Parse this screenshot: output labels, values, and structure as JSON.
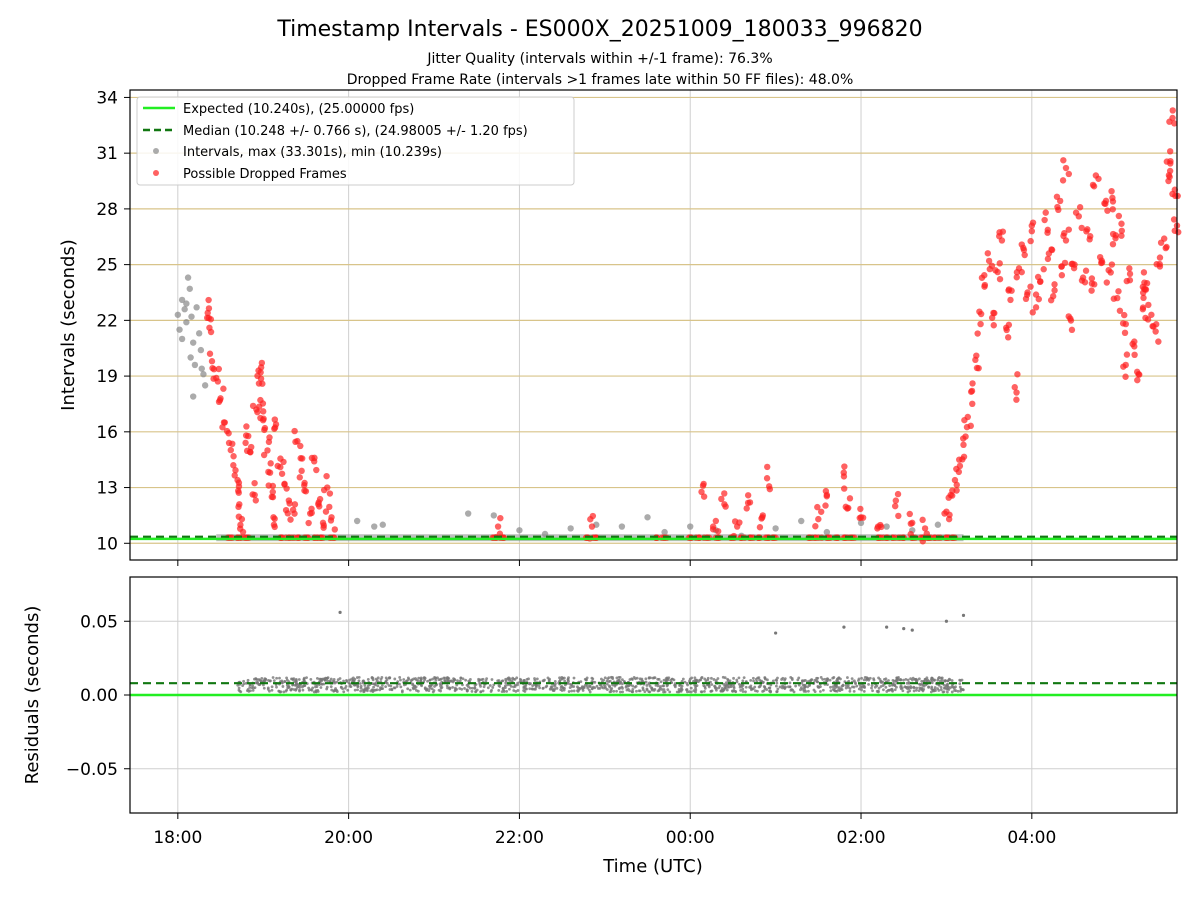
{
  "chart_data": {
    "type": "scatter",
    "title": "Timestamp Intervals - ES000X_20251009_180033_996820",
    "subtitle_lines": [
      "Jitter Quality (intervals within +/-1 frame): 76.3%",
      "Dropped Frame Rate (intervals >1 frames late within 50 FF files): 48.0%"
    ],
    "xlabel": "Time (UTC)",
    "x_unit": "hours since 18:00 UTC",
    "xlim": [
      -0.56,
      11.7
    ],
    "x_ticks": [
      {
        "value": 0,
        "label": "18:00"
      },
      {
        "value": 2,
        "label": "20:00"
      },
      {
        "value": 4,
        "label": "22:00"
      },
      {
        "value": 6,
        "label": "00:00"
      },
      {
        "value": 8,
        "label": "02:00"
      },
      {
        "value": 10,
        "label": "04:00"
      }
    ],
    "top_panel": {
      "ylabel": "Intervals (seconds)",
      "ylim": [
        9.1,
        34.4
      ],
      "y_ticks": [
        10,
        13,
        16,
        19,
        22,
        25,
        28,
        31,
        34
      ],
      "gridlines": [
        10,
        13,
        16,
        19,
        22,
        25,
        28,
        31,
        34
      ],
      "expected_value": 10.24,
      "median_value": 10.248,
      "legend": [
        {
          "label": "Expected (10.240s), (25.00000 fps)",
          "kind": "line",
          "color": "#22ee22"
        },
        {
          "label": "Median (10.248 +/- 0.766 s), (24.98005 +/- 1.20 fps)",
          "kind": "dashed",
          "color": "#117711"
        },
        {
          "label": "Intervals, max (33.301s), min (10.239s)",
          "kind": "dot",
          "color": "#888888"
        },
        {
          "label": "Possible Dropped Frames",
          "kind": "dot",
          "color": "#ff2020"
        }
      ],
      "gray_points": [
        [
          0.0,
          22.3
        ],
        [
          0.02,
          21.5
        ],
        [
          0.05,
          23.1
        ],
        [
          0.08,
          22.6
        ],
        [
          0.1,
          21.9
        ],
        [
          0.12,
          24.3
        ],
        [
          0.14,
          23.7
        ],
        [
          0.16,
          22.2
        ],
        [
          0.18,
          20.8
        ],
        [
          0.2,
          19.6
        ],
        [
          0.22,
          22.7
        ],
        [
          0.25,
          21.3
        ],
        [
          0.27,
          20.4
        ],
        [
          0.3,
          19.1
        ],
        [
          0.32,
          18.5
        ],
        [
          0.05,
          21.0
        ],
        [
          0.1,
          22.9
        ],
        [
          0.15,
          20.0
        ],
        [
          0.18,
          17.9
        ],
        [
          0.28,
          19.4
        ],
        [
          2.1,
          11.2
        ],
        [
          2.3,
          10.9
        ],
        [
          2.4,
          11.0
        ],
        [
          3.4,
          11.6
        ],
        [
          3.7,
          11.5
        ],
        [
          4.0,
          10.7
        ],
        [
          4.3,
          10.5
        ],
        [
          4.6,
          10.8
        ],
        [
          4.9,
          11.0
        ],
        [
          5.2,
          10.9
        ],
        [
          5.5,
          11.4
        ],
        [
          5.7,
          10.6
        ],
        [
          6.0,
          10.9
        ],
        [
          6.3,
          10.7
        ],
        [
          6.6,
          10.4
        ],
        [
          7.0,
          10.8
        ],
        [
          7.3,
          11.2
        ],
        [
          7.6,
          10.6
        ],
        [
          8.0,
          11.1
        ],
        [
          8.3,
          10.9
        ],
        [
          8.6,
          10.7
        ],
        [
          8.9,
          11.0
        ]
      ],
      "red_points": [
        [
          0.35,
          22.4
        ],
        [
          0.37,
          21.6
        ],
        [
          0.4,
          19.8
        ],
        [
          0.45,
          18.9
        ],
        [
          0.5,
          17.8
        ],
        [
          0.55,
          16.5
        ],
        [
          0.6,
          15.4
        ],
        [
          0.65,
          14.2
        ],
        [
          0.7,
          13.4
        ],
        [
          0.72,
          12.1
        ],
        [
          0.75,
          11.3
        ],
        [
          0.8,
          15.8
        ],
        [
          0.85,
          14.9
        ],
        [
          0.9,
          12.6
        ],
        [
          0.92,
          17.2
        ],
        [
          0.95,
          18.6
        ],
        [
          0.97,
          19.2
        ],
        [
          1.0,
          17.1
        ],
        [
          1.02,
          16.2
        ],
        [
          1.05,
          15.0
        ],
        [
          1.08,
          13.8
        ],
        [
          1.1,
          12.5
        ],
        [
          1.12,
          11.4
        ],
        [
          1.15,
          16.4
        ],
        [
          1.2,
          14.1
        ],
        [
          1.25,
          13.2
        ],
        [
          1.3,
          12.3
        ],
        [
          1.35,
          11.8
        ],
        [
          1.4,
          15.5
        ],
        [
          1.45,
          13.9
        ],
        [
          1.5,
          12.8
        ],
        [
          1.55,
          11.6
        ],
        [
          1.6,
          14.6
        ],
        [
          1.65,
          12.2
        ],
        [
          1.7,
          11.1
        ],
        [
          1.75,
          13.0
        ],
        [
          1.8,
          11.4
        ],
        [
          0.6,
          10.3
        ],
        [
          0.7,
          10.3
        ],
        [
          0.8,
          10.3
        ],
        [
          1.2,
          10.3
        ],
        [
          1.3,
          10.3
        ],
        [
          1.4,
          10.3
        ],
        [
          1.5,
          10.3
        ],
        [
          1.6,
          10.3
        ],
        [
          1.7,
          10.3
        ],
        [
          1.8,
          10.3
        ],
        [
          3.7,
          10.3
        ],
        [
          3.8,
          10.3
        ],
        [
          3.75,
          10.9
        ],
        [
          4.8,
          10.3
        ],
        [
          4.9,
          10.3
        ],
        [
          4.85,
          10.9
        ],
        [
          5.6,
          10.3
        ],
        [
          5.7,
          10.3
        ],
        [
          6.0,
          10.3
        ],
        [
          6.1,
          10.3
        ],
        [
          6.2,
          10.3
        ],
        [
          6.3,
          10.3
        ],
        [
          6.5,
          10.3
        ],
        [
          6.6,
          10.3
        ],
        [
          6.7,
          10.3
        ],
        [
          6.8,
          10.3
        ],
        [
          6.9,
          10.3
        ],
        [
          7.0,
          10.3
        ],
        [
          7.4,
          10.3
        ],
        [
          7.5,
          10.3
        ],
        [
          7.6,
          10.3
        ],
        [
          7.7,
          10.3
        ],
        [
          7.8,
          10.3
        ],
        [
          7.9,
          10.3
        ],
        [
          8.2,
          10.3
        ],
        [
          8.3,
          10.3
        ],
        [
          8.4,
          10.3
        ],
        [
          8.5,
          10.3
        ],
        [
          8.6,
          10.3
        ],
        [
          8.7,
          10.3
        ],
        [
          8.8,
          10.3
        ],
        [
          8.9,
          10.3
        ],
        [
          9.0,
          10.3
        ],
        [
          9.1,
          10.3
        ],
        [
          6.15,
          13.1
        ],
        [
          6.3,
          11.2
        ],
        [
          6.4,
          12.1
        ],
        [
          6.55,
          10.9
        ],
        [
          6.7,
          12.2
        ],
        [
          6.85,
          11.5
        ],
        [
          6.9,
          13.5
        ],
        [
          7.5,
          11.3
        ],
        [
          7.6,
          12.6
        ],
        [
          7.8,
          13.6
        ],
        [
          7.85,
          11.9
        ],
        [
          8.0,
          11.4
        ],
        [
          8.2,
          10.9
        ],
        [
          8.4,
          12.0
        ],
        [
          8.6,
          11.1
        ],
        [
          8.75,
          10.8
        ],
        [
          9.0,
          11.7
        ],
        [
          9.05,
          12.6
        ],
        [
          9.1,
          13.4
        ],
        [
          9.15,
          14.5
        ],
        [
          9.2,
          15.3
        ],
        [
          9.25,
          16.8
        ],
        [
          9.3,
          18.2
        ],
        [
          9.35,
          20.1
        ],
        [
          9.4,
          21.8
        ],
        [
          9.45,
          23.9
        ],
        [
          9.5,
          25.2
        ],
        [
          9.55,
          22.4
        ],
        [
          9.6,
          24.6
        ],
        [
          9.65,
          26.3
        ],
        [
          9.7,
          21.6
        ],
        [
          9.75,
          23.1
        ],
        [
          9.8,
          18.4
        ],
        [
          9.85,
          24.8
        ],
        [
          9.9,
          25.9
        ],
        [
          9.95,
          23.5
        ],
        [
          10.0,
          26.8
        ],
        [
          10.05,
          22.7
        ],
        [
          10.1,
          24.1
        ],
        [
          10.15,
          27.4
        ],
        [
          10.2,
          25.6
        ],
        [
          10.25,
          23.3
        ],
        [
          10.3,
          28.1
        ],
        [
          10.35,
          24.9
        ],
        [
          10.4,
          26.3
        ],
        [
          10.45,
          22.1
        ],
        [
          10.5,
          25.0
        ],
        [
          10.55,
          27.6
        ],
        [
          10.6,
          24.3
        ],
        [
          10.65,
          26.9
        ],
        [
          10.7,
          23.6
        ],
        [
          10.75,
          29.8
        ],
        [
          10.8,
          25.4
        ],
        [
          10.85,
          28.3
        ],
        [
          10.9,
          24.7
        ],
        [
          10.95,
          26.1
        ],
        [
          11.0,
          23.2
        ],
        [
          11.05,
          27.2
        ],
        [
          11.1,
          21.8
        ],
        [
          11.15,
          24.5
        ],
        [
          11.2,
          20.6
        ],
        [
          11.25,
          19.1
        ],
        [
          11.3,
          22.6
        ],
        [
          11.35,
          24.0
        ],
        [
          11.4,
          22.3
        ],
        [
          11.45,
          21.4
        ],
        [
          11.5,
          24.9
        ],
        [
          11.55,
          26.4
        ],
        [
          11.6,
          29.5
        ],
        [
          11.62,
          31.1
        ],
        [
          11.65,
          33.3
        ],
        [
          11.68,
          28.7
        ],
        [
          11.7,
          27.1
        ],
        [
          10.4,
          30.2
        ],
        [
          10.95,
          28.4
        ],
        [
          11.3,
          23.8
        ],
        [
          11.1,
          19.6
        ]
      ],
      "gray_band": {
        "x_start": 0.45,
        "x_end": 9.2,
        "value": 10.3
      }
    },
    "bottom_panel": {
      "ylabel": "Residuals (seconds)",
      "ylim": [
        -0.08,
        0.08
      ],
      "y_ticks": [
        {
          "value": 0.05,
          "label": "0.05"
        },
        {
          "value": 0.0,
          "label": "0.00"
        },
        {
          "value": -0.05,
          "label": "−0.05"
        }
      ],
      "expected_value": 0.0,
      "median_value": 0.008,
      "residual_band": {
        "x_start": 0.7,
        "x_end": 9.2,
        "center": 0.007,
        "spread": 0.005
      },
      "outliers": [
        [
          1.9,
          0.056
        ],
        [
          7.0,
          0.042
        ],
        [
          7.8,
          0.046
        ],
        [
          8.3,
          0.046
        ],
        [
          8.5,
          0.045
        ],
        [
          8.6,
          0.044
        ],
        [
          9.0,
          0.05
        ],
        [
          9.2,
          0.054
        ]
      ]
    }
  }
}
